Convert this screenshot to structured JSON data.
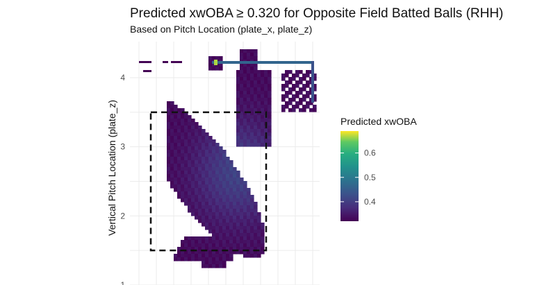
{
  "chart_data": {
    "type": "heatmap",
    "title": "Predicted xwOBA ≥ 0.320 for Opposite Field Batted Balls (RHH)",
    "subtitle": "Based on Pitch Location (plate_x, plate_z)",
    "ylabel": "Vertical Pitch Location (plate_z)",
    "xlabel": "",
    "y_ticks": [
      1,
      2,
      3,
      4
    ],
    "ylim": [
      1.0,
      4.45
    ],
    "xlim": [
      -1.65,
      1.1
    ],
    "grid": true,
    "strike_zone": {
      "x": [
        -0.83,
        0.83
      ],
      "z": [
        1.5,
        3.5
      ],
      "style": "dashed"
    },
    "legend": {
      "title": "Predicted xwOBA",
      "ticks": [
        0.4,
        0.5,
        0.6
      ],
      "range": [
        0.32,
        0.69
      ],
      "colormap": "viridis",
      "placement": "right"
    },
    "cells": [
      {
        "x": 0.0,
        "z": 3.0,
        "value": 0.36
      },
      {
        "x": 0.1,
        "z": 2.8,
        "value": 0.37
      },
      {
        "x": -0.2,
        "z": 2.4,
        "value": 0.36
      },
      {
        "x": -0.5,
        "z": 2.0,
        "value": 0.34
      },
      {
        "x": 0.3,
        "z": 3.5,
        "value": 0.34
      },
      {
        "x": 0.65,
        "z": 4.2,
        "value": 0.47
      },
      {
        "x": -0.6,
        "z": 4.2,
        "value": 0.65
      }
    ]
  }
}
